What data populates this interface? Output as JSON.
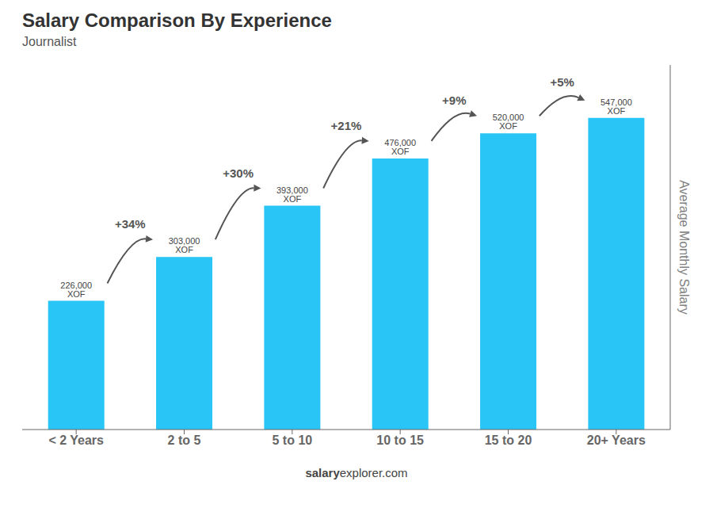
{
  "chart_data": {
    "type": "bar",
    "title": "Salary Comparison By Experience",
    "subtitle": "Journalist",
    "ylabel": "Average Monthly Salary",
    "categories": [
      "< 2 Years",
      "2 to 5",
      "5 to 10",
      "10 to 15",
      "15 to 20",
      "20+ Years"
    ],
    "values": [
      226000,
      303000,
      393000,
      476000,
      520000,
      547000
    ],
    "value_labels": [
      "226,000 XOF",
      "303,000 XOF",
      "393,000 XOF",
      "476,000 XOF",
      "520,000 XOF",
      "547,000 XOF"
    ],
    "data_labels": true,
    "annotations": [
      "+34%",
      "+30%",
      "+21%",
      "+9%",
      "+5%"
    ],
    "watermark": [
      "salary",
      "explorer.com"
    ],
    "color": "#29c5f6",
    "ylim": [
      0,
      640000
    ],
    "tick_labels": "x",
    "grid": false
  }
}
